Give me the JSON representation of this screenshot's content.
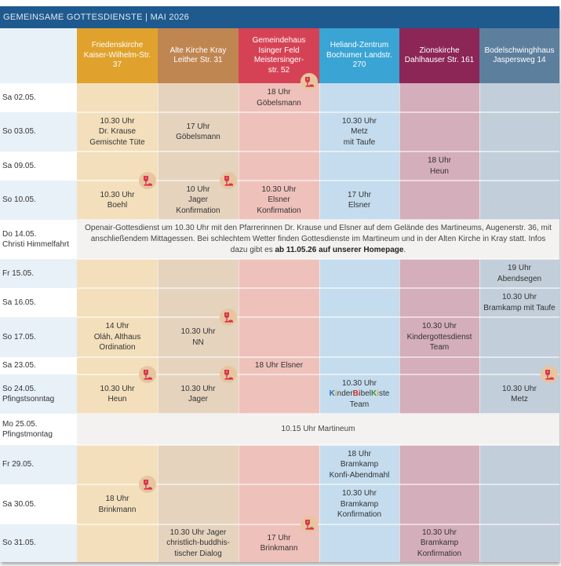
{
  "banner": {
    "title": "GEMEINSAME GOTTESDIENSTE  |  MAI 2026"
  },
  "columns": [
    {
      "id": "friedenskirche",
      "label": "Friedenskirche\nKaiser-Wilhelm-Str.\n37",
      "header_color": "#e0a22c",
      "cell_color": "#f3dfbc"
    },
    {
      "id": "alte-kirche",
      "label": "Alte Kirche Kray\nLeither Str. 31",
      "header_color": "#c08652",
      "cell_color": "#e5d3be"
    },
    {
      "id": "gemeindehaus",
      "label": "Gemeindehaus\nIsinger Feld\nMeistersinger-\nstr. 52",
      "header_color": "#d64255",
      "cell_color": "#efc1bb"
    },
    {
      "id": "heliand",
      "label": "Heliand-Zentrum\nBochumer Landstr.\n270",
      "header_color": "#3aa4d4",
      "cell_color": "#c4dcee"
    },
    {
      "id": "zionskirche",
      "label": "Zionskirche\nDahlhauser Str. 161",
      "header_color": "#8c2657",
      "cell_color": "#d4aeba"
    },
    {
      "id": "bodelschwingh",
      "label": "Bodelschwinghhaus\nJaspersweg 14",
      "header_color": "#5d7f9e",
      "cell_color": "#c2ceda"
    }
  ],
  "date_column": {
    "stripe_light": "#ffffff",
    "stripe_blue": "#e8f1f8"
  },
  "rows": [
    {
      "date": "Sa 02.05.",
      "cells": [
        "",
        "",
        "18 Uhr\nGöbelsmann",
        "",
        "",
        ""
      ],
      "communion": []
    },
    {
      "date": "So 03.05.",
      "cells": [
        "10.30 Uhr\nDr. Krause\nGemischte Tüte",
        "17 Uhr\nGöbelsmann",
        "",
        "10.30 Uhr\nMetz\nmit Taufe",
        "",
        ""
      ],
      "communion": []
    },
    {
      "date": "Sa 09.05.",
      "cells": [
        "",
        "",
        "",
        "",
        "18 Uhr\nHeun",
        ""
      ],
      "communion": []
    },
    {
      "date": "So 10.05.",
      "cells": [
        "10.30 Uhr\nBoehl",
        "10 Uhr\nJager\nKonfirmation",
        "10.30 Uhr\nElsner\nKonfirmation",
        "17 Uhr\nElsner",
        "",
        ""
      ],
      "communion": [
        0,
        1
      ]
    },
    {
      "date": "Do 14.05.\nChristi Himmelfahrt",
      "span": {
        "text_before": "Openair-Gottesdienst um 10.30 Uhr mit den Pfarrerinnen Dr. Krause und Elsner auf dem Gelände des Martineums, Augenerstr. 36, mit anschließendem Mittagessen. Bei schlechtem Wetter finden Gottesdienste im Martineum und in der Alten Kirche in Kray statt. Infos dazu gibt es ",
        "text_bold": "ab 11.05.26 auf unserer Homepage",
        "text_after": "."
      }
    },
    {
      "date": "Fr 15.05.",
      "cells": [
        "",
        "",
        "",
        "",
        "",
        "19 Uhr\nAbendsegen"
      ],
      "communion": []
    },
    {
      "date": "Sa 16.05.",
      "cells": [
        "",
        "",
        "",
        "",
        "",
        "10.30 Uhr\nBramkamp mit Taufe"
      ],
      "communion": []
    },
    {
      "date": "So 17.05.",
      "cells": [
        "14 Uhr\nOláh, Althaus\nOrdination",
        "10.30 Uhr\nNN",
        "",
        "",
        "10.30 Uhr\nKindergottesdienst\nTeam",
        ""
      ],
      "communion": [
        1
      ]
    },
    {
      "date": "Sa 23.05.",
      "cells": [
        "",
        "",
        "18 Uhr Elsner",
        "",
        "",
        ""
      ],
      "communion": []
    },
    {
      "date": "So 24.05.\nPfingstsonntag",
      "cells": [
        "10.30 Uhr\nHeun",
        "10.30 Uhr\nJager",
        "",
        "10.30 Uhr\n{KBK}\nTeam",
        "",
        "10.30 Uhr\nMetz"
      ],
      "communion": [
        0,
        1,
        5
      ]
    },
    {
      "date": "Mo 25.05.\nPfingstmontag",
      "span": {
        "text_before": "10.15 Uhr Martineum",
        "text_bold": "",
        "text_after": ""
      }
    },
    {
      "date": "Fr 29.05.",
      "cells": [
        "",
        "",
        "",
        "18 Uhr\nBramkamp\nKonfi-Abendmahl",
        "",
        ""
      ],
      "communion": []
    },
    {
      "date": "Sa 30.05.",
      "cells": [
        "18 Uhr\nBrinkmann",
        "",
        "",
        "10.30 Uhr\nBramkamp\nKonfirmation",
        "",
        ""
      ],
      "communion": [
        0
      ]
    },
    {
      "date": "So 31.05.",
      "cells": [
        "",
        "10.30 Uhr Jager\nchristlich-buddhis-\ntischer Dialog",
        "17 Uhr\nBrinkmann",
        "",
        "10.30 Uhr\nBramkamp\nKonfirmation",
        ""
      ],
      "communion": [
        2
      ]
    }
  ],
  "header_communion": [
    2
  ],
  "kinderbibelkiste": {
    "parts": [
      "K",
      "i",
      "nder",
      "Bi",
      "bel",
      "K",
      "i",
      "ste"
    ]
  },
  "icons": {
    "communion": "chalice-bread-icon",
    "communion_color": "#d8344a",
    "communion_bg": "#e7c59f"
  }
}
